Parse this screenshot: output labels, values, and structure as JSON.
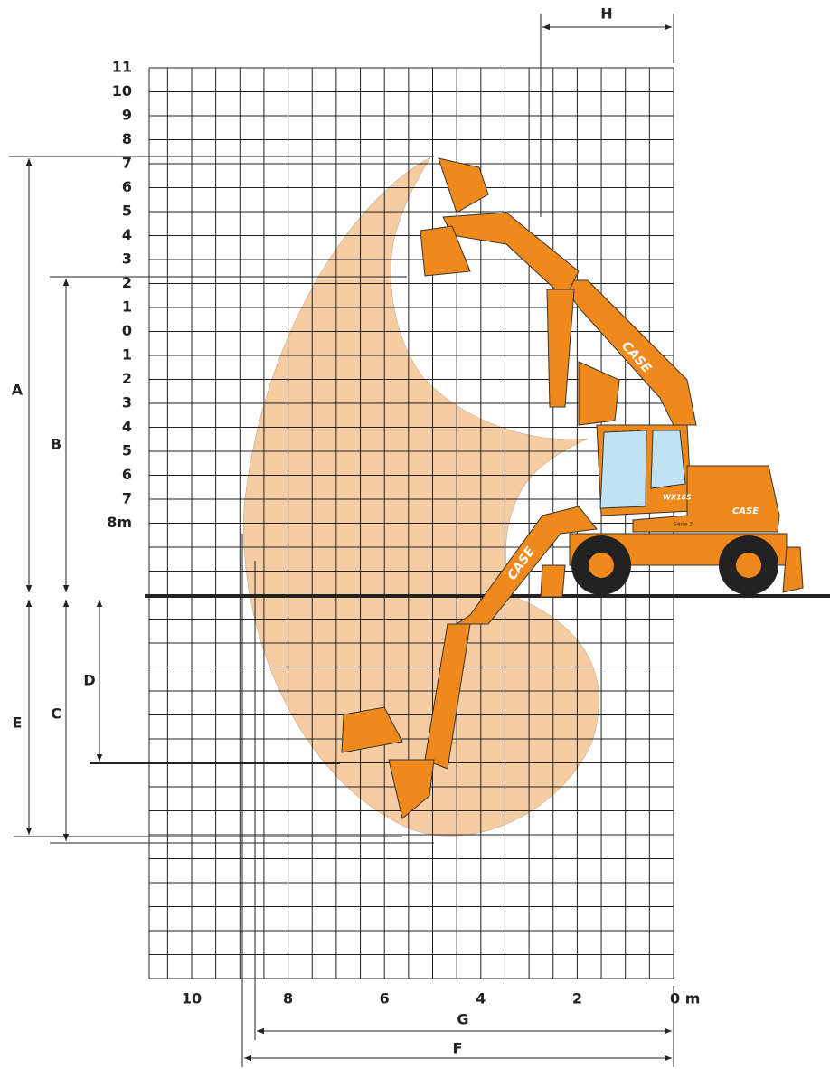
{
  "y_axis": {
    "labels": [
      "11",
      "10",
      "9",
      "8",
      "7",
      "6",
      "5",
      "4",
      "3",
      "2",
      "1",
      "0",
      "1",
      "2",
      "3",
      "4",
      "5",
      "6",
      "7",
      "8m"
    ]
  },
  "x_axis": {
    "labels": [
      "10",
      "8",
      "6",
      "4",
      "2",
      "0 m"
    ]
  },
  "dimensions": {
    "A": "A",
    "B": "B",
    "C": "C",
    "D": "D",
    "E": "E",
    "F": "F",
    "G": "G",
    "H": "H"
  },
  "machine": {
    "brand": "CASE",
    "model": "WX165",
    "series": "Serie 2"
  }
}
